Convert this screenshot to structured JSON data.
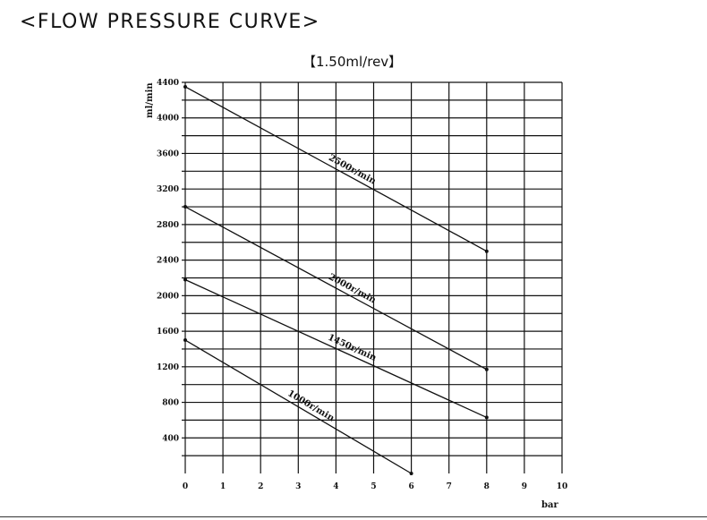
{
  "header": {
    "title": "<FLOW PRESSURE CURVE>",
    "subtitle": "【1.50ml/rev】"
  },
  "chart_data": {
    "type": "line",
    "title": "<FLOW PRESSURE CURVE>",
    "subtitle": "【1.50ml/rev】",
    "xlabel": "bar",
    "ylabel": "ml/min",
    "xlim": [
      0,
      10
    ],
    "ylim": [
      0,
      4400
    ],
    "xticks": [
      "0",
      "1",
      "2",
      "3",
      "4",
      "5",
      "6",
      "7",
      "8",
      "9",
      "10"
    ],
    "yticks": [
      "400",
      "800",
      "1200",
      "1600",
      "2000",
      "2400",
      "2800",
      "3200",
      "3600",
      "4000",
      "4400"
    ],
    "grid": true,
    "series": [
      {
        "name": "2500r/min",
        "x": [
          0,
          8
        ],
        "y": [
          4350,
          2500
        ]
      },
      {
        "name": "2000r/min",
        "x": [
          0,
          8
        ],
        "y": [
          3000,
          1170
        ]
      },
      {
        "name": "1450r/min",
        "x": [
          0,
          8
        ],
        "y": [
          2180,
          630
        ]
      },
      {
        "name": "1000r/min",
        "x": [
          0,
          6
        ],
        "y": [
          1500,
          0
        ]
      }
    ],
    "line_color": "#111111",
    "grid_color": "#111111"
  }
}
